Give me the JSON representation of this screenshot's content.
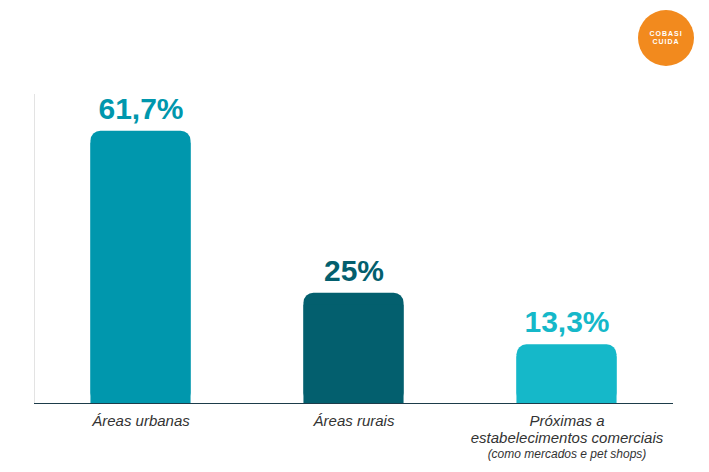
{
  "chart_data": {
    "type": "bar",
    "categories": [
      "Áreas urbanas",
      "Áreas rurais",
      "Próximas a\nestabelecimentos comerciais"
    ],
    "category_notes": [
      null,
      null,
      "(como mercados e pet shops)"
    ],
    "values": [
      61.7,
      25,
      13.3
    ],
    "value_labels": [
      "61,7%",
      "25%",
      "13,3%"
    ],
    "colors": [
      "#0097ad",
      "#035f6e",
      "#15b8c9"
    ],
    "ylim": [
      0,
      70
    ],
    "data_labels": true,
    "tick_labels": false,
    "grid": false,
    "annotations": [
      "COBASI CUIDA"
    ]
  }
}
